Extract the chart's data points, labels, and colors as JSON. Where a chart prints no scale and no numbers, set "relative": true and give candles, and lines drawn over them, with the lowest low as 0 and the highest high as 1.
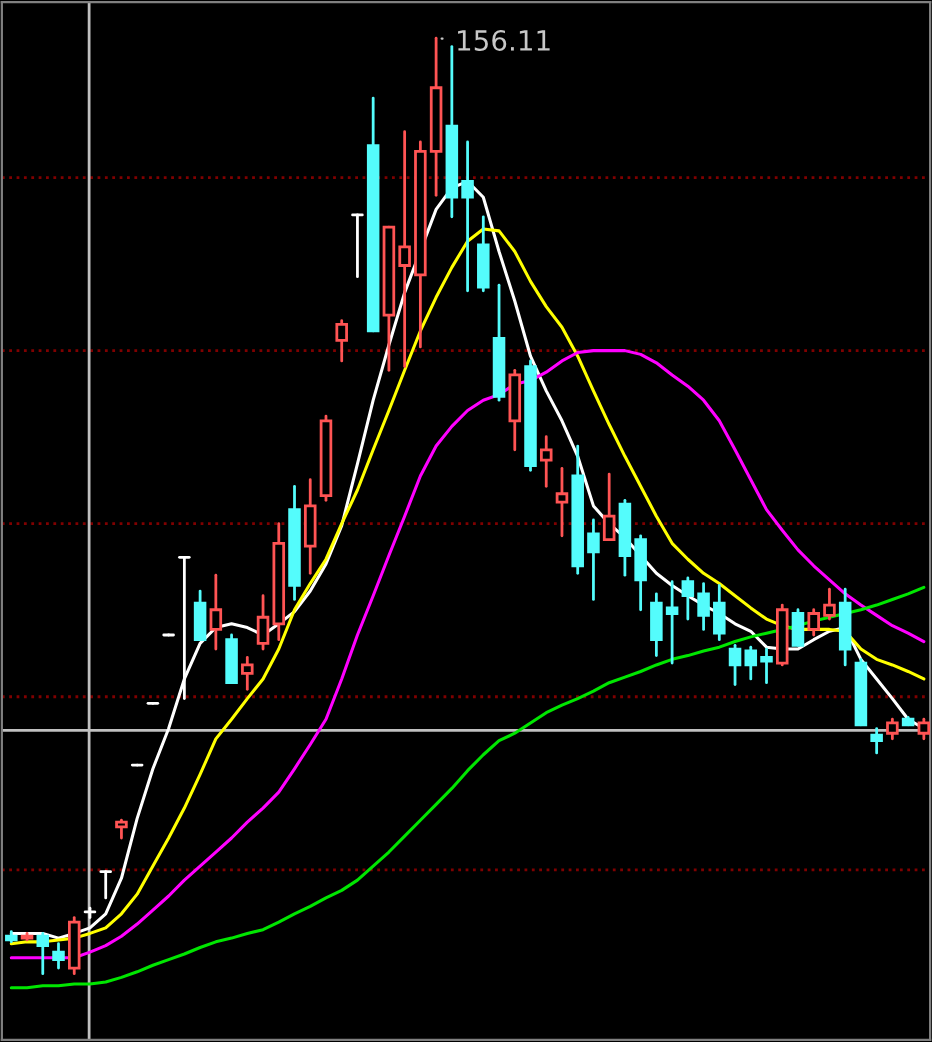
{
  "chart_data": {
    "type": "candlestick",
    "relative": true,
    "categories": [
      null,
      null,
      null,
      null,
      null,
      null,
      null,
      null,
      null,
      null,
      null,
      null,
      null,
      null,
      null,
      null,
      null,
      null,
      null,
      null,
      null,
      null,
      null,
      null,
      null,
      null,
      null,
      null,
      null,
      null,
      null,
      null,
      null,
      null,
      null,
      null,
      null,
      null,
      null,
      null,
      null,
      null,
      null,
      null,
      null,
      null,
      null,
      null,
      null,
      null,
      null,
      null,
      null,
      null,
      null,
      null,
      null,
      null,
      null
    ],
    "ohlc": [
      [
        0.04,
        0.045,
        0.034,
        0.036
      ],
      [
        0.038,
        0.043,
        0.036,
        0.04
      ],
      [
        0.04,
        0.043,
        0.0,
        0.03
      ],
      [
        0.023,
        0.032,
        0.006,
        0.015
      ],
      [
        0.006,
        0.06,
        0.0,
        0.055
      ],
      [
        0.066,
        0.07,
        0.06,
        0.066
      ],
      [
        0.109,
        0.109,
        0.081,
        0.109
      ],
      [
        0.157,
        0.164,
        0.145,
        0.162
      ],
      [
        0.223,
        0.223,
        0.223,
        0.223
      ],
      [
        0.289,
        0.289,
        0.289,
        0.289
      ],
      [
        0.362,
        0.362,
        0.362,
        0.362
      ],
      [
        0.445,
        0.445,
        0.294,
        0.445
      ],
      [
        0.396,
        0.409,
        0.357,
        0.357
      ],
      [
        0.368,
        0.426,
        0.347,
        0.389
      ],
      [
        0.357,
        0.362,
        0.311,
        0.311
      ],
      [
        0.321,
        0.338,
        0.304,
        0.33
      ],
      [
        0.353,
        0.404,
        0.347,
        0.381
      ],
      [
        0.374,
        0.481,
        0.357,
        0.46
      ],
      [
        0.496,
        0.521,
        0.4,
        0.415
      ],
      [
        0.457,
        0.528,
        0.428,
        0.5
      ],
      [
        0.511,
        0.596,
        0.506,
        0.591
      ],
      [
        0.677,
        0.698,
        0.655,
        0.694
      ],
      [
        0.811,
        0.811,
        0.745,
        0.811
      ],
      [
        0.885,
        0.936,
        0.687,
        0.687
      ],
      [
        0.704,
        0.798,
        0.645,
        0.798
      ],
      [
        0.757,
        0.9,
        0.649,
        0.777
      ],
      [
        0.747,
        0.889,
        0.67,
        0.879
      ],
      [
        0.879,
        1.0,
        0.832,
        0.947
      ],
      [
        0.906,
        0.991,
        0.809,
        0.83
      ],
      [
        0.847,
        0.889,
        0.73,
        0.83
      ],
      [
        0.779,
        0.809,
        0.73,
        0.734
      ],
      [
        0.679,
        0.736,
        0.613,
        0.617
      ],
      [
        0.591,
        0.645,
        0.56,
        0.64
      ],
      [
        0.649,
        0.655,
        0.538,
        0.543
      ],
      [
        0.549,
        0.574,
        0.521,
        0.56
      ],
      [
        0.504,
        0.54,
        0.468,
        0.513
      ],
      [
        0.532,
        0.564,
        0.428,
        0.436
      ],
      [
        0.47,
        0.485,
        0.4,
        0.451
      ],
      [
        0.464,
        0.534,
        0.464,
        0.489
      ],
      [
        0.502,
        0.506,
        0.426,
        0.447
      ],
      [
        0.464,
        0.468,
        0.389,
        0.421
      ],
      [
        0.396,
        0.406,
        0.34,
        0.357
      ],
      [
        0.391,
        0.419,
        0.332,
        0.385
      ],
      [
        0.419,
        0.423,
        0.379,
        0.404
      ],
      [
        0.406,
        0.417,
        0.368,
        0.383
      ],
      [
        0.396,
        0.415,
        0.357,
        0.364
      ],
      [
        0.347,
        0.351,
        0.309,
        0.33
      ],
      [
        0.345,
        0.349,
        0.315,
        0.33
      ],
      [
        0.338,
        0.347,
        0.311,
        0.334
      ],
      [
        0.332,
        0.394,
        0.33,
        0.389
      ],
      [
        0.385,
        0.389,
        0.351,
        0.351
      ],
      [
        0.368,
        0.389,
        0.362,
        0.385
      ],
      [
        0.383,
        0.411,
        0.379,
        0.394
      ],
      [
        0.396,
        0.411,
        0.33,
        0.347
      ],
      [
        0.332,
        0.336,
        0.266,
        0.266
      ],
      [
        0.255,
        0.262,
        0.236,
        0.249
      ],
      [
        0.257,
        0.272,
        0.251,
        0.268
      ],
      [
        0.272,
        0.274,
        0.266,
        0.266
      ],
      [
        0.257,
        0.272,
        0.251,
        0.268
      ]
    ],
    "colors": [
      "#54fcfc",
      "#ff5454",
      "#54fcfc",
      "#54fcfc",
      "#ff5454",
      "#ffffff",
      "#ffffff",
      "#ff5454",
      "#ffffff",
      "#ffffff",
      "#ffffff",
      "#ffffff",
      "#54fcfc",
      "#ff5454",
      "#54fcfc",
      "#ff5454",
      "#ff5454",
      "#ff5454",
      "#54fcfc",
      "#ff5454",
      "#ff5454",
      "#ff5454",
      "#ffffff",
      "#54fcfc",
      "#ff5454",
      "#ff5454",
      "#ff5454",
      "#ff5454",
      "#54fcfc",
      "#54fcfc",
      "#54fcfc",
      "#54fcfc",
      "#ff5454",
      "#54fcfc",
      "#ff5454",
      "#ff5454",
      "#54fcfc",
      "#54fcfc",
      "#ff5454",
      "#54fcfc",
      "#54fcfc",
      "#54fcfc",
      "#54fcfc",
      "#54fcfc",
      "#54fcfc",
      "#54fcfc",
      "#54fcfc",
      "#54fcfc",
      "#54fcfc",
      "#ff5454",
      "#54fcfc",
      "#ff5454",
      "#ff5454",
      "#54fcfc",
      "#54fcfc",
      "#54fcfc",
      "#ff5454",
      "#54fcfc",
      "#ff5454"
    ],
    "series": [
      {
        "type": "line",
        "color": "#ffffff",
        "values": [
          0.043,
          0.043,
          0.043,
          0.038,
          0.043,
          0.049,
          0.064,
          0.102,
          0.166,
          0.219,
          0.262,
          0.315,
          0.353,
          0.37,
          0.374,
          0.37,
          0.362,
          0.374,
          0.387,
          0.409,
          0.438,
          0.479,
          0.545,
          0.613,
          0.672,
          0.728,
          null,
          0.817,
          0.84,
          0.847,
          0.83,
          0.772,
          0.719,
          0.66,
          0.623,
          0.591,
          0.553,
          0.5,
          0.481,
          0.466,
          0.447,
          0.428,
          0.415,
          0.404,
          0.394,
          0.385,
          0.374,
          0.366,
          0.349,
          0.347,
          0.347,
          0.357,
          0.366,
          0.37,
          0.336,
          0.315,
          0.294,
          0.272,
          0.262
        ]
      },
      {
        "type": "line",
        "color": "#ffff00",
        "values": [
          0.032,
          0.034,
          0.034,
          0.036,
          0.038,
          0.043,
          0.049,
          0.064,
          0.085,
          0.115,
          0.145,
          0.177,
          0.213,
          0.251,
          0.272,
          0.294,
          0.315,
          0.347,
          0.389,
          0.417,
          0.443,
          0.481,
          0.517,
          0.56,
          0.602,
          0.645,
          0.687,
          0.723,
          0.755,
          0.783,
          0.796,
          0.794,
          0.772,
          0.74,
          0.713,
          0.691,
          0.66,
          0.623,
          0.587,
          0.553,
          0.521,
          0.489,
          0.46,
          0.443,
          0.428,
          0.417,
          0.404,
          0.391,
          0.379,
          0.372,
          0.368,
          0.368,
          0.368,
          0.366,
          0.347,
          0.336,
          0.33,
          0.323,
          0.315
        ]
      },
      {
        "type": "line",
        "color": "#ff00ff",
        "values": [
          0.017,
          0.017,
          0.017,
          0.017,
          0.017,
          0.023,
          0.03,
          0.04,
          0.053,
          0.068,
          0.083,
          0.1,
          0.115,
          0.13,
          0.145,
          0.162,
          0.177,
          0.194,
          0.219,
          0.245,
          0.272,
          0.315,
          0.362,
          0.404,
          0.447,
          0.489,
          0.532,
          0.564,
          0.585,
          0.602,
          0.613,
          0.619,
          0.63,
          0.634,
          0.643,
          0.655,
          0.664,
          0.666,
          0.666,
          0.666,
          0.662,
          0.653,
          0.64,
          0.628,
          0.613,
          0.591,
          0.56,
          0.528,
          0.496,
          0.474,
          0.453,
          0.436,
          0.421,
          0.406,
          0.394,
          0.383,
          0.372,
          0.364,
          0.355
        ]
      },
      {
        "type": "line",
        "color": "#00e600",
        "values": [
          -0.015,
          -0.015,
          -0.013,
          -0.013,
          -0.011,
          -0.011,
          -0.009,
          -0.004,
          0.002,
          0.009,
          0.015,
          0.021,
          0.028,
          0.034,
          0.038,
          0.043,
          0.047,
          0.055,
          0.064,
          0.072,
          0.081,
          0.089,
          0.1,
          0.115,
          0.13,
          0.147,
          0.164,
          0.181,
          0.198,
          0.217,
          0.234,
          0.249,
          0.257,
          0.268,
          0.279,
          0.287,
          0.294,
          0.302,
          0.311,
          0.317,
          0.323,
          0.33,
          0.336,
          0.34,
          0.345,
          0.349,
          0.355,
          0.36,
          0.364,
          0.368,
          0.372,
          0.377,
          0.381,
          0.385,
          0.389,
          0.394,
          0.4,
          0.406,
          0.413
        ]
      }
    ],
    "ref_lines": [
      {
        "axis": "y",
        "value": 0.851,
        "color": "#800000",
        "line_style": "dotted"
      },
      {
        "axis": "y",
        "value": 0.666,
        "color": "#800000",
        "line_style": "dotted"
      },
      {
        "axis": "y",
        "value": 0.481,
        "color": "#800000",
        "line_style": "dotted"
      },
      {
        "axis": "y",
        "value": 0.296,
        "color": "#800000",
        "line_style": "dotted"
      },
      {
        "axis": "y",
        "value": 0.111,
        "color": "#800000",
        "line_style": "dotted"
      },
      {
        "axis": "y",
        "value": 0.26,
        "color": "#c0c0c0",
        "line_style": "solid"
      }
    ],
    "annotations": [
      "156.11"
    ]
  }
}
